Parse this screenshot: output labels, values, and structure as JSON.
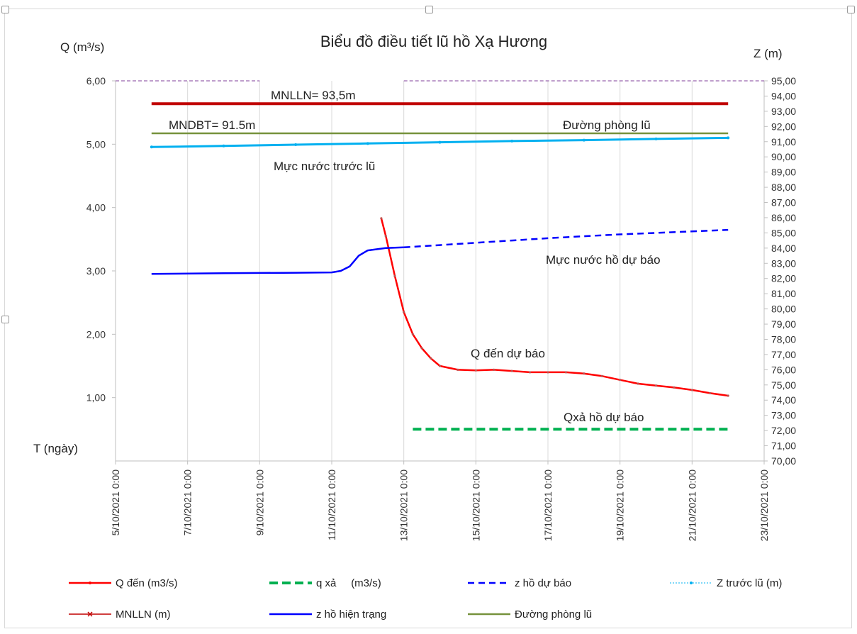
{
  "chart_data": {
    "type": "line",
    "title": "Biểu đồ điều tiết lũ hồ Xạ Hương",
    "y_left_label": "Q (m³/s)",
    "y_right_label": "Z (m)",
    "x_label": "T (ngày)",
    "y_left_range": [
      0,
      6
    ],
    "y_left_ticks": [
      "6,00",
      "5,00",
      "4,00",
      "3,00",
      "2,00",
      "1,00"
    ],
    "y_right_range": [
      70,
      95
    ],
    "y_right_ticks": [
      "95,00",
      "94,00",
      "93,00",
      "92,00",
      "91,00",
      "90,00",
      "89,00",
      "88,00",
      "87,00",
      "86,00",
      "85,00",
      "84,00",
      "83,00",
      "82,00",
      "81,00",
      "80,00",
      "79,00",
      "78,00",
      "77,00",
      "76,00",
      "75,00",
      "74,00",
      "73,00",
      "72,00",
      "71,00",
      "70,00"
    ],
    "x_range": [
      "2021-10-05",
      "2021-10-23"
    ],
    "x_ticks": [
      "5/10/2021 0:00",
      "7/10/2021 0:00",
      "9/10/2021 0:00",
      "11/10/2021 0:00",
      "13/10/2021 0:00",
      "15/10/2021 0:00",
      "17/10/2021 0:00",
      "19/10/2021 0:00",
      "21/10/2021 0:00",
      "23/10/2021 0:00"
    ],
    "grid": "vertical",
    "legend_position": "bottom",
    "annotations": [
      "MNLLN= 93,5m",
      "MNDBT= 91.5m",
      "Đường phòng lũ",
      "Mực nước trước lũ",
      "Mực nước hồ dự báo",
      "Q đến dự báo",
      "Qxả hồ dự báo"
    ],
    "series": [
      {
        "name": "Q đến (m3/s)",
        "axis": "left",
        "color": "#ff0000",
        "style": "solid-marker",
        "x": [
          "2021-10-12T09:00",
          "2021-10-12T12:00",
          "2021-10-12T18:00",
          "2021-10-13T00:00",
          "2021-10-13T06:00",
          "2021-10-13T12:00",
          "2021-10-13T18:00",
          "2021-10-14T00:00",
          "2021-10-14T12:00",
          "2021-10-15T00:00",
          "2021-10-15T12:00",
          "2021-10-16T00:00",
          "2021-10-16T12:00",
          "2021-10-17T00:00",
          "2021-10-17T12:00",
          "2021-10-18T00:00",
          "2021-10-18T12:00",
          "2021-10-19T00:00",
          "2021-10-19T12:00",
          "2021-10-20T00:00",
          "2021-10-20T12:00",
          "2021-10-21T00:00",
          "2021-10-21T12:00",
          "2021-10-22T00:00"
        ],
        "values": [
          3.83,
          3.55,
          2.92,
          2.35,
          2.0,
          1.78,
          1.62,
          1.5,
          1.44,
          1.43,
          1.44,
          1.42,
          1.4,
          1.4,
          1.4,
          1.38,
          1.34,
          1.28,
          1.22,
          1.19,
          1.16,
          1.12,
          1.07,
          1.03
        ]
      },
      {
        "name": "q xả     (m3/s)",
        "axis": "left",
        "color": "#00b050",
        "style": "dashed-thick",
        "x": [
          "2021-10-13T06:00",
          "2021-10-22T00:00"
        ],
        "values": [
          0.5,
          0.5
        ]
      },
      {
        "name": "z hồ dự báo",
        "axis": "right",
        "color": "#0000ff",
        "style": "dashed",
        "x": [
          "2021-10-13T00:00",
          "2021-10-14T00:00",
          "2021-10-15T00:00",
          "2021-10-16T00:00",
          "2021-10-17T00:00",
          "2021-10-18T00:00",
          "2021-10-19T00:00",
          "2021-10-20T00:00",
          "2021-10-21T00:00",
          "2021-10-22T00:00"
        ],
        "values": [
          84.05,
          84.2,
          84.35,
          84.5,
          84.65,
          84.78,
          84.9,
          85.0,
          85.1,
          85.2
        ]
      },
      {
        "name": "Z trước lũ (m)",
        "axis": "right",
        "color": "#00b0f0",
        "style": "dotted-marker",
        "x": [
          "2021-10-06T00:00",
          "2021-10-08T00:00",
          "2021-10-10T00:00",
          "2021-10-12T00:00",
          "2021-10-14T00:00",
          "2021-10-16T00:00",
          "2021-10-18T00:00",
          "2021-10-20T00:00",
          "2021-10-22T00:00"
        ],
        "values": [
          90.65,
          90.72,
          90.8,
          90.88,
          90.96,
          91.04,
          91.1,
          91.18,
          91.25
        ]
      },
      {
        "name": "MNLLN (m)",
        "axis": "right",
        "color": "#c00000",
        "style": "solid-thick",
        "x": [
          "2021-10-06T00:00",
          "2021-10-22T00:00"
        ],
        "values": [
          93.5,
          93.5
        ]
      },
      {
        "name": "z hồ hiện trạng",
        "axis": "right",
        "color": "#0000ff",
        "style": "solid",
        "x": [
          "2021-10-06T00:00",
          "2021-10-08T00:00",
          "2021-10-10T00:00",
          "2021-10-11T00:00",
          "2021-10-11T06:00",
          "2021-10-11T12:00",
          "2021-10-11T18:00",
          "2021-10-12T00:00",
          "2021-10-12T12:00",
          "2021-10-13T00:00"
        ],
        "values": [
          82.3,
          82.35,
          82.38,
          82.4,
          82.5,
          82.8,
          83.5,
          83.85,
          84.0,
          84.05
        ]
      },
      {
        "name": "Đường phòng lũ",
        "axis": "right",
        "color": "#76923c",
        "style": "solid",
        "x": [
          "2021-10-06T00:00",
          "2021-10-22T00:00"
        ],
        "values": [
          91.55,
          91.55
        ]
      },
      {
        "name": "",
        "axis": "right",
        "color": "#7f3f98",
        "style": "dashed-thin",
        "x": [
          "2021-10-05T00:00",
          "2021-10-09T00:00",
          "2021-10-13T00:00",
          "2021-10-23T00:00"
        ],
        "values": [
          95,
          95,
          95,
          95
        ],
        "segments": [
          [
            0,
            1
          ],
          [
            2,
            3
          ]
        ]
      }
    ],
    "legend": [
      {
        "label": "Q đến (m3/s)",
        "color": "#ff0000",
        "style": "solid-marker"
      },
      {
        "label": "q xả     (m3/s)",
        "color": "#00b050",
        "style": "dashed-thick"
      },
      {
        "label": "z hồ dự báo",
        "color": "#0000ff",
        "style": "dashed"
      },
      {
        "label": "Z trước lũ (m)",
        "color": "#00b0f0",
        "style": "dotted-marker"
      },
      {
        "label": "MNLLN (m)",
        "color": "#c00000",
        "style": "solid-marker-x"
      },
      {
        "label": "z hồ hiện trạng",
        "color": "#0000ff",
        "style": "solid"
      },
      {
        "label": "Đường phòng lũ",
        "color": "#76923c",
        "style": "solid"
      }
    ]
  }
}
